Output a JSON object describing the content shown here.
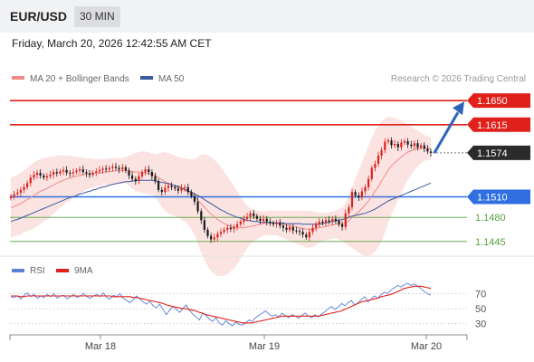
{
  "header": {
    "symbol": "EUR/USD",
    "timeframe": "30 MIN",
    "datetime": "Friday, March 20, 2026 12:42:55 AM CET"
  },
  "legend": {
    "ma20": {
      "label": "MA 20 + Bollinger Bands",
      "color": "#f08b86"
    },
    "ma50": {
      "label": "MA 50",
      "color": "#3b5aa0"
    },
    "copyright": "Research © 2026 Trading Central",
    "rsi": {
      "label": "RSI",
      "color": "#5b7fd6"
    },
    "rsi_ma": {
      "label": "9MA",
      "color": "#e0201a"
    }
  },
  "colors": {
    "resistance": "#e0201a",
    "pivot": "#2f6fe0",
    "support": "#5aa040",
    "bull_candle": "#e0201a",
    "bear_candle": "#1b1b1b",
    "bollinger_fill": "#fbe3e2",
    "arrow": "#2d64b8",
    "current_price_bg": "#2b2b2b"
  },
  "chart_data": [
    {
      "type": "candlestick",
      "title": "",
      "x_ticks": [
        "Mar 18",
        "Mar 19",
        "Mar 20"
      ],
      "ylim": [
        1.1425,
        1.167
      ],
      "levels": [
        {
          "label": "1.1650",
          "value": 1.165,
          "kind": "resistance"
        },
        {
          "label": "1.1615",
          "value": 1.1615,
          "kind": "resistance"
        },
        {
          "label": "1.1574",
          "value": 1.1574,
          "kind": "current"
        },
        {
          "label": "1.1510",
          "value": 1.151,
          "kind": "pivot"
        },
        {
          "label": "1.1480",
          "value": 1.148,
          "kind": "support"
        },
        {
          "label": "1.1445",
          "value": 1.1445,
          "kind": "support"
        }
      ],
      "forecast": {
        "from": 1.1574,
        "to": 1.165,
        "direction": "up"
      },
      "close": [
        1.1511,
        1.1514,
        1.1516,
        1.152,
        1.1524,
        1.153,
        1.1538,
        1.1542,
        1.1545,
        1.1541,
        1.1538,
        1.154,
        1.1542,
        1.1546,
        1.1544,
        1.1547,
        1.1549,
        1.1545,
        1.1544,
        1.1546,
        1.1548,
        1.155,
        1.1546,
        1.1544,
        1.1542,
        1.1545,
        1.1547,
        1.1549,
        1.1551,
        1.155,
        1.1552,
        1.1554,
        1.1552,
        1.155,
        1.1553,
        1.1548,
        1.1541,
        1.1536,
        1.1533,
        1.154,
        1.1546,
        1.155,
        1.1546,
        1.154,
        1.1533,
        1.152,
        1.1517,
        1.1523,
        1.1526,
        1.1524,
        1.1522,
        1.1519,
        1.1523,
        1.1524,
        1.1517,
        1.1511,
        1.1503,
        1.1489,
        1.1476,
        1.1462,
        1.1453,
        1.1448,
        1.1451,
        1.1456,
        1.1459,
        1.1462,
        1.1465,
        1.1463,
        1.1466,
        1.147,
        1.1474,
        1.1478,
        1.1481,
        1.1486,
        1.1482,
        1.1478,
        1.1475,
        1.1478,
        1.1474,
        1.1472,
        1.147,
        1.1472,
        1.1468,
        1.1465,
        1.1462,
        1.1466,
        1.1461,
        1.146,
        1.1459,
        1.1455,
        1.1451,
        1.1459,
        1.1465,
        1.147,
        1.1474,
        1.1472,
        1.1476,
        1.1474,
        1.1478,
        1.1475,
        1.147,
        1.1466,
        1.1486,
        1.1495,
        1.1517,
        1.1512,
        1.1509,
        1.1518,
        1.1524,
        1.1536,
        1.1552,
        1.1558,
        1.157,
        1.1578,
        1.159,
        1.1592,
        1.1585,
        1.1587,
        1.1582,
        1.1589,
        1.1591,
        1.1586,
        1.1584,
        1.1588,
        1.1582,
        1.1585,
        1.158,
        1.1576,
        1.1574
      ],
      "ma20": [
        1.1494,
        1.1496,
        1.1498,
        1.15,
        1.1503,
        1.1506,
        1.1509,
        1.1512,
        1.1515,
        1.1518,
        1.152,
        1.1522,
        1.1525,
        1.1527,
        1.153,
        1.1532,
        1.1534,
        1.1536,
        1.1537,
        1.1539,
        1.154,
        1.1541,
        1.1542,
        1.1543,
        1.1544,
        1.1544,
        1.1545,
        1.1545,
        1.1546,
        1.1546,
        1.1547,
        1.1547,
        1.1548,
        1.1548,
        1.1548,
        1.1549,
        1.1548,
        1.1547,
        1.1546,
        1.1546,
        1.1546,
        1.1545,
        1.1544,
        1.1543,
        1.1541,
        1.1538,
        1.1535,
        1.1532,
        1.153,
        1.1528,
        1.1526,
        1.1524,
        1.1522,
        1.152,
        1.1517,
        1.1514,
        1.151,
        1.1505,
        1.15,
        1.1495,
        1.149,
        1.1485,
        1.1481,
        1.1477,
        1.1474,
        1.1471,
        1.1469,
        1.1467,
        1.1466,
        1.1465,
        1.1465,
        1.1465,
        1.1466,
        1.1467,
        1.1468,
        1.1469,
        1.147,
        1.1471,
        1.1472,
        1.1472,
        1.1472,
        1.1472,
        1.1471,
        1.147,
        1.1469,
        1.1468,
        1.1467,
        1.1466,
        1.1465,
        1.1464,
        1.1463,
        1.1463,
        1.1463,
        1.1464,
        1.1465,
        1.1466,
        1.1467,
        1.1468,
        1.1469,
        1.147,
        1.147,
        1.147,
        1.1472,
        1.1475,
        1.148,
        1.1484,
        1.1488,
        1.1493,
        1.1498,
        1.1504,
        1.1511,
        1.1518,
        1.1525,
        1.1533,
        1.1541,
        1.1549,
        1.1555,
        1.156,
        1.1564,
        1.1568,
        1.1572,
        1.1575,
        1.1577,
        1.1579,
        1.158,
        1.1581,
        1.1581,
        1.1581,
        1.158
      ],
      "ma50": [
        1.1474,
        1.1476,
        1.1477,
        1.1479,
        1.1481,
        1.1483,
        1.1485,
        1.1487,
        1.1489,
        1.1491,
        1.1493,
        1.1495,
        1.1497,
        1.1499,
        1.1501,
        1.1503,
        1.1505,
        1.1507,
        1.1509,
        1.151,
        1.1512,
        1.1514,
        1.1515,
        1.1517,
        1.1518,
        1.152,
        1.1521,
        1.1523,
        1.1524,
        1.1525,
        1.1527,
        1.1528,
        1.1529,
        1.153,
        1.1531,
        1.1532,
        1.1532,
        1.1533,
        1.1533,
        1.1534,
        1.1534,
        1.1534,
        1.1534,
        1.1534,
        1.1533,
        1.1532,
        1.1531,
        1.153,
        1.1529,
        1.1528,
        1.1526,
        1.1525,
        1.1523,
        1.1521,
        1.1519,
        1.1517,
        1.1514,
        1.1512,
        1.1509,
        1.1506,
        1.1503,
        1.15,
        1.1497,
        1.1494,
        1.1491,
        1.1489,
        1.1486,
        1.1484,
        1.1482,
        1.148,
        1.1479,
        1.1477,
        1.1476,
        1.1475,
        1.1474,
        1.1474,
        1.1473,
        1.1473,
        1.1473,
        1.1472,
        1.1472,
        1.1472,
        1.1472,
        1.1472,
        1.1471,
        1.1471,
        1.1471,
        1.1471,
        1.1471,
        1.147,
        1.147,
        1.147,
        1.147,
        1.147,
        1.147,
        1.1471,
        1.1472,
        1.1473,
        1.1474,
        1.1475,
        1.1476,
        1.1477,
        1.1478,
        1.148,
        1.1482,
        1.1483,
        1.1484,
        1.1485,
        1.1486,
        1.1488,
        1.149,
        1.1492,
        1.1495,
        1.1498,
        1.1501,
        1.1504,
        1.1506,
        1.1508,
        1.151,
        1.1512,
        1.1514,
        1.1516,
        1.1518,
        1.152,
        1.1522,
        1.1524,
        1.1526,
        1.1528,
        1.153
      ],
      "bb_upper": [
        1.1538,
        1.154,
        1.1542,
        1.1545,
        1.1548,
        1.1552,
        1.1556,
        1.156,
        1.1563,
        1.1565,
        1.1566,
        1.1567,
        1.1568,
        1.1569,
        1.157,
        1.157,
        1.157,
        1.157,
        1.157,
        1.1569,
        1.1568,
        1.1568,
        1.1567,
        1.1566,
        1.1566,
        1.1565,
        1.1565,
        1.1565,
        1.1565,
        1.1565,
        1.1566,
        1.1566,
        1.1567,
        1.1567,
        1.1567,
        1.1568,
        1.157,
        1.1572,
        1.1574,
        1.1575,
        1.1576,
        1.1576,
        1.1575,
        1.1573,
        1.1572,
        1.1573,
        1.1575,
        1.1575,
        1.1574,
        1.1572,
        1.157,
        1.1568,
        1.1567,
        1.1566,
        1.1565,
        1.1565,
        1.1565,
        1.1568,
        1.1571,
        1.1572,
        1.1571,
        1.1568,
        1.1564,
        1.1559,
        1.1553,
        1.1547,
        1.154,
        1.1533,
        1.1526,
        1.1518,
        1.151,
        1.1503,
        1.1497,
        1.1493,
        1.1491,
        1.149,
        1.1489,
        1.1489,
        1.149,
        1.149,
        1.149,
        1.149,
        1.149,
        1.149,
        1.149,
        1.149,
        1.149,
        1.149,
        1.149,
        1.149,
        1.149,
        1.149,
        1.1489,
        1.1488,
        1.1487,
        1.1487,
        1.1487,
        1.1488,
        1.1489,
        1.149,
        1.1492,
        1.1494,
        1.1502,
        1.1512,
        1.1524,
        1.1536,
        1.1548,
        1.156,
        1.1572,
        1.1584,
        1.1596,
        1.1606,
        1.1614,
        1.162,
        1.1624,
        1.1626,
        1.1626,
        1.1625,
        1.1623,
        1.1621,
        1.1618,
        1.1615,
        1.1612,
        1.1609,
        1.1606,
        1.1603,
        1.16,
        1.1598,
        1.1597
      ],
      "bb_lower": [
        1.145,
        1.1452,
        1.1454,
        1.1455,
        1.1458,
        1.146,
        1.1462,
        1.1464,
        1.1467,
        1.1471,
        1.1474,
        1.1477,
        1.1482,
        1.1485,
        1.149,
        1.1494,
        1.1498,
        1.1502,
        1.1504,
        1.1509,
        1.1512,
        1.1514,
        1.1517,
        1.152,
        1.1522,
        1.1523,
        1.1525,
        1.1525,
        1.1527,
        1.1527,
        1.1528,
        1.1528,
        1.1529,
        1.1529,
        1.1529,
        1.153,
        1.1526,
        1.1522,
        1.1518,
        1.1517,
        1.1516,
        1.1514,
        1.1513,
        1.1513,
        1.151,
        1.1503,
        1.1495,
        1.1489,
        1.1486,
        1.1484,
        1.1482,
        1.148,
        1.1477,
        1.1474,
        1.1469,
        1.1463,
        1.1455,
        1.1442,
        1.1429,
        1.1418,
        1.1409,
        1.1402,
        1.1398,
        1.1395,
        1.1395,
        1.1395,
        1.1398,
        1.1401,
        1.1406,
        1.1412,
        1.142,
        1.1427,
        1.1435,
        1.1441,
        1.1445,
        1.1448,
        1.1451,
        1.1453,
        1.1454,
        1.1454,
        1.1454,
        1.1454,
        1.1452,
        1.145,
        1.1448,
        1.1446,
        1.1444,
        1.1442,
        1.144,
        1.1438,
        1.1436,
        1.1436,
        1.1437,
        1.144,
        1.1443,
        1.1445,
        1.1447,
        1.1448,
        1.1449,
        1.145,
        1.1448,
        1.1446,
        1.1442,
        1.1438,
        1.1436,
        1.1432,
        1.1428,
        1.1426,
        1.1424,
        1.1424,
        1.1426,
        1.143,
        1.1436,
        1.1446,
        1.1458,
        1.1472,
        1.1484,
        1.1495,
        1.1505,
        1.1515,
        1.1526,
        1.1535,
        1.1542,
        1.1549,
        1.1554,
        1.1559,
        1.1562,
        1.1564,
        1.1563
      ]
    },
    {
      "type": "line",
      "title": "",
      "y_ticks": [
        70,
        50,
        30
      ],
      "ylim": [
        15,
        90
      ],
      "series": [
        {
          "name": "RSI",
          "values": [
            66,
            65,
            67,
            63,
            68,
            71,
            66,
            69,
            64,
            67,
            65,
            69,
            66,
            70,
            64,
            67,
            68,
            63,
            66,
            69,
            65,
            67,
            70,
            66,
            64,
            67,
            69,
            66,
            71,
            65,
            63,
            68,
            66,
            70,
            64,
            61,
            58,
            62,
            67,
            63,
            59,
            56,
            60,
            54,
            51,
            56,
            49,
            42,
            48,
            53,
            49,
            45,
            50,
            55,
            48,
            43,
            39,
            35,
            44,
            41,
            36,
            33,
            38,
            31,
            28,
            34,
            30,
            27,
            32,
            29,
            28,
            31,
            35,
            33,
            38,
            41,
            44,
            47,
            43,
            40,
            42,
            39,
            44,
            41,
            38,
            42,
            40,
            37,
            41,
            44,
            40,
            38,
            42,
            39,
            43,
            46,
            50,
            53,
            49,
            52,
            57,
            54,
            58,
            61,
            55,
            58,
            62,
            66,
            59,
            63,
            67,
            64,
            69,
            72,
            70,
            75,
            78,
            81,
            79,
            82,
            84,
            81,
            83,
            80,
            77,
            73,
            70,
            68
          ]
        },
        {
          "name": "9MA",
          "values": [
            67,
            67,
            67,
            66,
            66,
            67,
            67,
            67,
            67,
            67,
            67,
            67,
            67,
            67,
            67,
            67,
            67,
            67,
            67,
            67,
            67,
            67,
            67,
            67,
            67,
            67,
            67,
            67,
            67,
            67,
            67,
            66,
            66,
            66,
            66,
            66,
            66,
            65,
            65,
            64,
            63,
            62,
            61,
            60,
            59,
            58,
            57,
            55,
            54,
            53,
            52,
            51,
            50,
            50,
            49,
            48,
            47,
            45,
            44,
            42,
            41,
            40,
            39,
            38,
            37,
            36,
            35,
            34,
            33,
            32,
            31,
            31,
            31,
            31,
            32,
            33,
            34,
            35,
            36,
            37,
            38,
            39,
            40,
            40,
            40,
            40,
            40,
            40,
            40,
            40,
            40,
            40,
            40,
            40,
            41,
            42,
            43,
            44,
            45,
            46,
            47,
            49,
            51,
            53,
            55,
            57,
            59,
            60,
            61,
            62,
            63,
            64,
            66,
            67,
            68,
            69,
            71,
            73,
            75,
            77,
            78,
            79,
            80,
            80,
            80,
            79,
            78,
            77
          ]
        }
      ]
    }
  ]
}
